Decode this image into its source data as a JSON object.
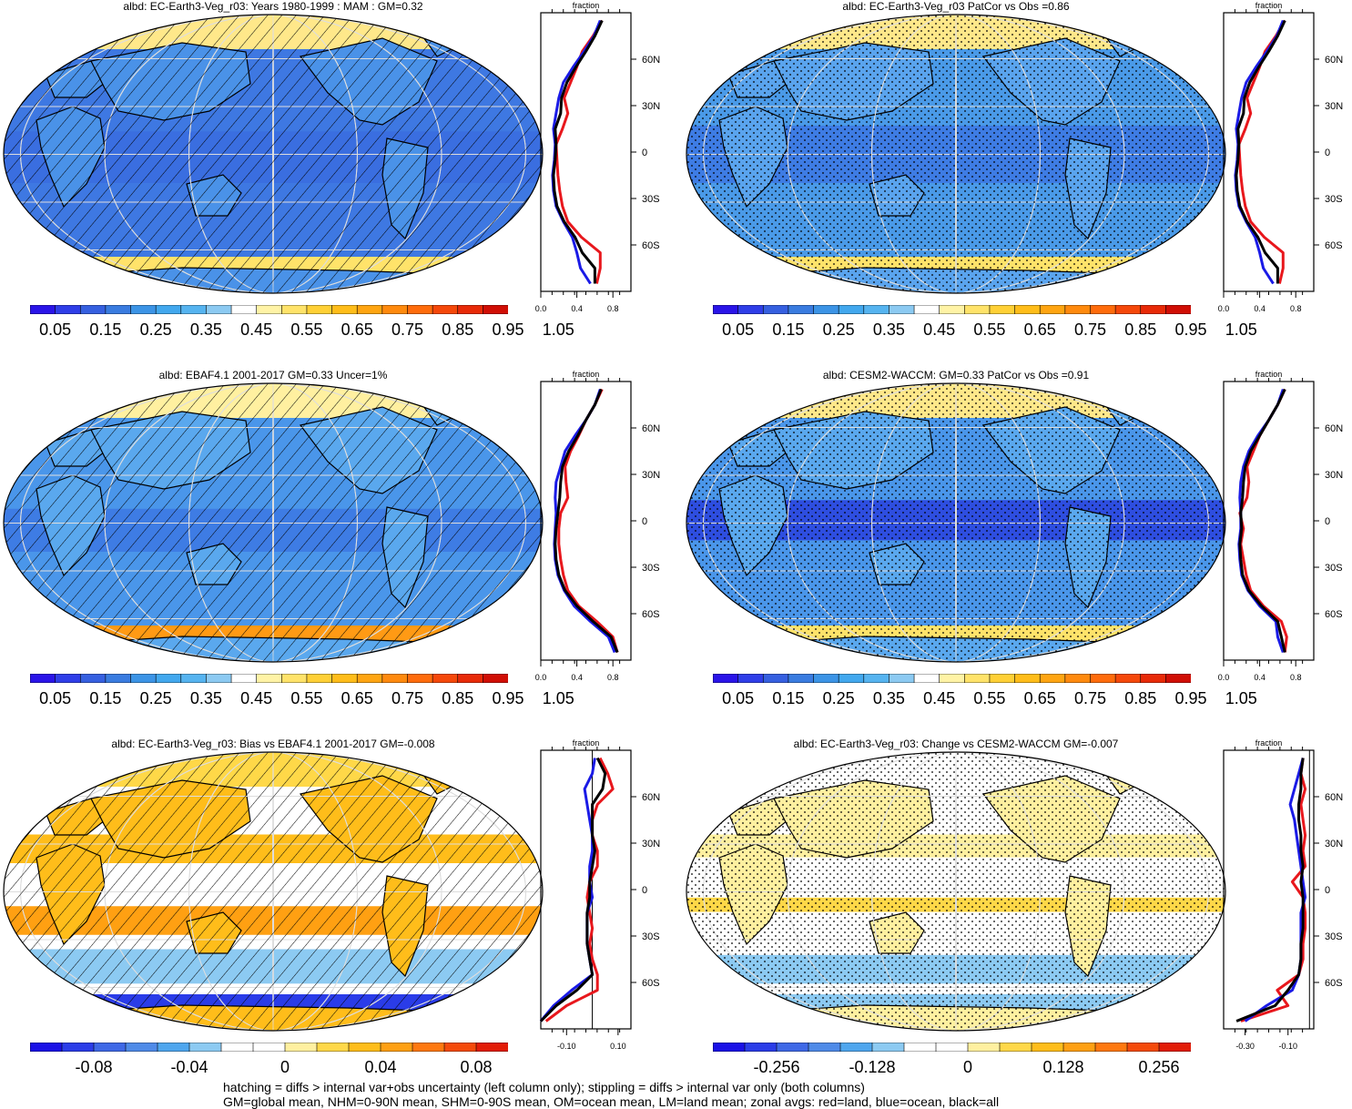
{
  "footer": {
    "line1": "hatching = diffs > internal var+obs uncertainty (left column only); stippling = diffs > internal var only (both columns)",
    "line2": "GM=global mean, NHM=0-90N mean, SHM=0-90S mean, OM=ocean mean, LM=land mean; zonal avgs: red=land, blue=ocean, black=all"
  },
  "colors": {
    "land": "#e8171c",
    "ocean": "#1a1ae6",
    "all": "#000000",
    "abs_scale": [
      "#2a14e8",
      "#2f3ee8",
      "#3660e0",
      "#3a7ce0",
      "#3c94e6",
      "#42a8ee",
      "#56b4f0",
      "#8ccaf2",
      "#ffffff",
      "#fff3a6",
      "#ffe36a",
      "#ffd036",
      "#ffbd1a",
      "#ffa512",
      "#ff8a0e",
      "#ff6c0c",
      "#f5480a",
      "#e82a08",
      "#d00e05"
    ],
    "diff_scale": [
      "#1a10e6",
      "#2a3ce8",
      "#3e68e6",
      "#4e8ae8",
      "#4ea6ee",
      "#8ccaf2",
      "#ffffff",
      "#ffffff",
      "#fff0a0",
      "#ffd848",
      "#ffbd1a",
      "#ffa012",
      "#ff780e",
      "#f44a0a",
      "#e21c06"
    ]
  },
  "panels": [
    {
      "id": "p1",
      "title": "albd: EC-Earth3-Veg_r03: Years 1980-1999 : MAM : GM=0.32",
      "overlay": "hatching",
      "colorbar": [
        "0.05",
        "0.15",
        "0.25",
        "0.35",
        "0.45",
        "0.55",
        "0.65",
        "0.75",
        "0.85",
        "0.95",
        "1.05"
      ],
      "zonal_title": "fraction",
      "zonal_xticks": [
        "0.0",
        "0.4",
        "0.8"
      ],
      "zonal_yticks": [
        "60N",
        "30N",
        "0",
        "30S",
        "60S"
      ]
    },
    {
      "id": "p2",
      "title": "albd: EC-Earth3-Veg_r03 PatCor vs Obs =0.86",
      "overlay": "stippling",
      "colorbar": [
        "0.05",
        "0.15",
        "0.25",
        "0.35",
        "0.45",
        "0.55",
        "0.65",
        "0.75",
        "0.85",
        "0.95",
        "1.05"
      ],
      "zonal_title": "fraction",
      "zonal_xticks": [
        "0.0",
        "0.4",
        "0.8"
      ],
      "zonal_yticks": [
        "60N",
        "30N",
        "0",
        "30S",
        "60S"
      ]
    },
    {
      "id": "p3",
      "title": "albd: EBAF4.1 2001-2017 GM=0.33 Uncer=1%",
      "overlay": "hatching",
      "colorbar": [
        "0.05",
        "0.15",
        "0.25",
        "0.35",
        "0.45",
        "0.55",
        "0.65",
        "0.75",
        "0.85",
        "0.95",
        "1.05"
      ],
      "zonal_title": "fraction",
      "zonal_xticks": [
        "0.0",
        "0.4",
        "0.8"
      ],
      "zonal_yticks": [
        "60N",
        "30N",
        "0",
        "30S",
        "60S"
      ]
    },
    {
      "id": "p4",
      "title": "albd: CESM2-WACCM: GM=0.33 PatCor vs Obs =0.91",
      "overlay": "stippling",
      "colorbar": [
        "0.05",
        "0.15",
        "0.25",
        "0.35",
        "0.45",
        "0.55",
        "0.65",
        "0.75",
        "0.85",
        "0.95",
        "1.05"
      ],
      "zonal_title": "fraction",
      "zonal_xticks": [
        "0.0",
        "0.4",
        "0.8"
      ],
      "zonal_yticks": [
        "60N",
        "30N",
        "0",
        "30S",
        "60S"
      ]
    },
    {
      "id": "p5",
      "title": "albd: EC-Earth3-Veg_r03: Bias vs EBAF4.1 2001-2017 GM=-0.008",
      "overlay": "hatching",
      "colorbar": [
        "-0.08",
        "-0.04",
        "0",
        "0.04",
        "0.08"
      ],
      "zonal_title": "fraction",
      "zonal_xticks": [
        "-0.10",
        "0.10"
      ],
      "zonal_yticks": [
        "60N",
        "30N",
        "0",
        "30S",
        "60S"
      ]
    },
    {
      "id": "p6",
      "title": "albd: EC-Earth3-Veg_r03: Change vs CESM2-WACCM GM=-0.007",
      "overlay": "stippling",
      "colorbar": [
        "-0.256",
        "-0.128",
        "0",
        "0.128",
        "0.256"
      ],
      "zonal_title": "fraction",
      "zonal_xticks": [
        "-0.30",
        "-0.10"
      ],
      "zonal_yticks": [
        "60N",
        "30N",
        "0",
        "30S",
        "60S"
      ]
    }
  ],
  "chart_data": [
    {
      "type": "line",
      "title": "albd: EC-Earth3-Veg_r03: Years 1980-1999 : MAM : GM=0.32",
      "xlabel": "fraction",
      "xlim": [
        0.0,
        1.0
      ],
      "ylim": [
        -90,
        90
      ],
      "latitudes": [
        -85,
        -75,
        -65,
        -55,
        -45,
        -35,
        -25,
        -15,
        -5,
        5,
        15,
        25,
        35,
        45,
        55,
        65,
        75,
        85
      ],
      "series": [
        {
          "name": "red=land",
          "values": [
            0.62,
            0.66,
            0.66,
            0.45,
            0.3,
            0.24,
            0.21,
            0.19,
            0.18,
            0.17,
            0.24,
            0.3,
            0.26,
            0.33,
            0.4,
            0.46,
            0.58,
            0.68
          ]
        },
        {
          "name": "blue=ocean",
          "values": [
            0.55,
            0.44,
            0.4,
            0.35,
            0.25,
            0.17,
            0.14,
            0.13,
            0.15,
            0.16,
            0.14,
            0.17,
            0.2,
            0.25,
            0.36,
            0.48,
            0.59,
            0.66
          ]
        },
        {
          "name": "black=all",
          "values": [
            0.6,
            0.6,
            0.46,
            0.38,
            0.26,
            0.18,
            0.15,
            0.14,
            0.16,
            0.17,
            0.16,
            0.22,
            0.23,
            0.29,
            0.39,
            0.5,
            0.6,
            0.68
          ]
        }
      ]
    },
    {
      "type": "line",
      "title": "albd: EC-Earth3-Veg_r03 PatCor vs Obs =0.86",
      "xlabel": "fraction",
      "xlim": [
        0.0,
        1.0
      ],
      "ylim": [
        -90,
        90
      ],
      "latitudes": [
        -85,
        -75,
        -65,
        -55,
        -45,
        -35,
        -25,
        -15,
        -5,
        5,
        15,
        25,
        35,
        45,
        55,
        65,
        75,
        85
      ],
      "series": [
        {
          "name": "red=land",
          "values": [
            0.62,
            0.66,
            0.66,
            0.45,
            0.3,
            0.24,
            0.21,
            0.19,
            0.18,
            0.17,
            0.24,
            0.3,
            0.26,
            0.33,
            0.4,
            0.46,
            0.58,
            0.68
          ]
        },
        {
          "name": "blue=ocean",
          "values": [
            0.55,
            0.44,
            0.4,
            0.35,
            0.25,
            0.17,
            0.14,
            0.13,
            0.15,
            0.16,
            0.14,
            0.17,
            0.2,
            0.25,
            0.36,
            0.48,
            0.59,
            0.66
          ]
        },
        {
          "name": "black=all",
          "values": [
            0.6,
            0.6,
            0.46,
            0.38,
            0.26,
            0.18,
            0.15,
            0.14,
            0.16,
            0.17,
            0.16,
            0.22,
            0.23,
            0.29,
            0.39,
            0.5,
            0.6,
            0.68
          ]
        }
      ]
    },
    {
      "type": "line",
      "title": "albd: EBAF4.1 2001-2017 GM=0.33 Uncer=1%",
      "xlabel": "fraction",
      "xlim": [
        0.0,
        1.0
      ],
      "ylim": [
        -90,
        90
      ],
      "latitudes": [
        -85,
        -75,
        -65,
        -55,
        -45,
        -35,
        -25,
        -15,
        -5,
        5,
        15,
        25,
        35,
        45,
        55,
        65,
        75,
        85
      ],
      "series": [
        {
          "name": "red=land",
          "values": [
            0.85,
            0.8,
            0.62,
            0.42,
            0.3,
            0.25,
            0.22,
            0.2,
            0.2,
            0.22,
            0.3,
            0.28,
            0.27,
            0.33,
            0.42,
            0.5,
            0.6,
            0.68
          ]
        },
        {
          "name": "blue=ocean",
          "values": [
            0.82,
            0.75,
            0.55,
            0.37,
            0.26,
            0.19,
            0.16,
            0.15,
            0.16,
            0.17,
            0.16,
            0.17,
            0.22,
            0.27,
            0.38,
            0.5,
            0.6,
            0.66
          ]
        },
        {
          "name": "black=all",
          "values": [
            0.85,
            0.78,
            0.58,
            0.4,
            0.27,
            0.2,
            0.17,
            0.16,
            0.17,
            0.19,
            0.21,
            0.22,
            0.24,
            0.31,
            0.41,
            0.5,
            0.6,
            0.67
          ]
        }
      ]
    },
    {
      "type": "line",
      "title": "albd: CESM2-WACCM: GM=0.33 PatCor vs Obs =0.91",
      "xlabel": "fraction",
      "xlim": [
        0.0,
        1.0
      ],
      "ylim": [
        -90,
        90
      ],
      "latitudes": [
        -85,
        -75,
        -65,
        -55,
        -45,
        -35,
        -25,
        -15,
        -5,
        5,
        15,
        25,
        35,
        45,
        55,
        65,
        75,
        85
      ],
      "series": [
        {
          "name": "red=land",
          "values": [
            0.68,
            0.7,
            0.64,
            0.44,
            0.3,
            0.25,
            0.22,
            0.19,
            0.22,
            0.18,
            0.26,
            0.28,
            0.26,
            0.33,
            0.4,
            0.5,
            0.6,
            0.68
          ]
        },
        {
          "name": "blue=ocean",
          "values": [
            0.66,
            0.6,
            0.58,
            0.4,
            0.27,
            0.2,
            0.18,
            0.17,
            0.19,
            0.19,
            0.18,
            0.19,
            0.22,
            0.28,
            0.38,
            0.5,
            0.6,
            0.66
          ]
        },
        {
          "name": "black=all",
          "values": [
            0.68,
            0.64,
            0.6,
            0.42,
            0.28,
            0.21,
            0.19,
            0.18,
            0.2,
            0.19,
            0.21,
            0.22,
            0.24,
            0.3,
            0.4,
            0.5,
            0.6,
            0.68
          ]
        }
      ]
    },
    {
      "type": "line",
      "title": "albd: EC-Earth3-Veg_r03: Bias vs EBAF4.1 2001-2017 GM=-0.008",
      "xlabel": "fraction",
      "xlim": [
        -0.2,
        0.15
      ],
      "ylim": [
        -90,
        90
      ],
      "latitudes": [
        -85,
        -75,
        -65,
        -55,
        -45,
        -35,
        -25,
        -15,
        -5,
        5,
        15,
        25,
        35,
        45,
        55,
        65,
        75,
        85
      ],
      "series": [
        {
          "name": "red=land",
          "values": [
            -0.18,
            -0.1,
            0.02,
            0.02,
            0.0,
            -0.01,
            0.0,
            -0.01,
            -0.02,
            -0.01,
            0.02,
            0.02,
            0.0,
            0.0,
            0.02,
            0.08,
            0.06,
            0.03
          ]
        },
        {
          "name": "blue=ocean",
          "values": [
            -0.2,
            -0.15,
            -0.08,
            0.0,
            -0.01,
            -0.02,
            -0.02,
            -0.02,
            0.0,
            -0.01,
            -0.01,
            0.0,
            0.0,
            -0.01,
            -0.02,
            -0.03,
            0.0,
            0.01
          ]
        },
        {
          "name": "black=all",
          "values": [
            -0.2,
            -0.14,
            -0.06,
            0.0,
            -0.01,
            -0.02,
            -0.02,
            -0.02,
            -0.01,
            -0.01,
            0.0,
            0.01,
            0.0,
            0.0,
            0.0,
            0.04,
            0.05,
            0.02
          ]
        }
      ]
    },
    {
      "type": "line",
      "title": "albd: EC-Earth3-Veg_r03: Change vs CESM2-WACCM GM=-0.007",
      "xlabel": "fraction",
      "xlim": [
        -0.4,
        0.02
      ],
      "ylim": [
        -90,
        90
      ],
      "latitudes": [
        -85,
        -75,
        -65,
        -55,
        -45,
        -35,
        -25,
        -15,
        -5,
        5,
        15,
        25,
        35,
        45,
        55,
        65,
        75,
        85
      ],
      "series": [
        {
          "name": "red=land",
          "values": [
            -0.32,
            -0.1,
            -0.15,
            -0.05,
            -0.03,
            -0.03,
            -0.02,
            -0.02,
            -0.03,
            -0.08,
            -0.02,
            -0.03,
            -0.02,
            -0.03,
            -0.04,
            -0.02,
            -0.04,
            -0.03
          ]
        },
        {
          "name": "blue=ocean",
          "values": [
            -0.3,
            -0.2,
            -0.08,
            -0.05,
            -0.04,
            -0.04,
            -0.04,
            -0.04,
            -0.02,
            -0.03,
            -0.04,
            -0.05,
            -0.06,
            -0.07,
            -0.09,
            -0.07,
            -0.05,
            -0.03
          ]
        },
        {
          "name": "black=all",
          "values": [
            -0.34,
            -0.16,
            -0.1,
            -0.05,
            -0.04,
            -0.04,
            -0.03,
            -0.03,
            -0.03,
            -0.04,
            -0.03,
            -0.04,
            -0.04,
            -0.05,
            -0.05,
            -0.04,
            -0.04,
            -0.03
          ]
        }
      ]
    }
  ]
}
